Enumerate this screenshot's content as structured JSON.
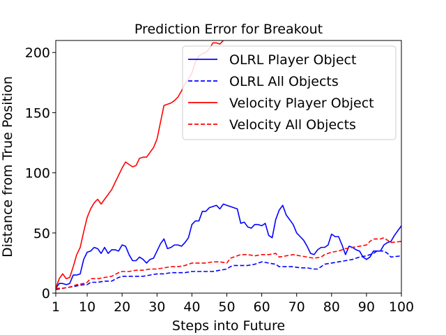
{
  "chart_data": {
    "type": "line",
    "title": "Prediction Error for Breakout",
    "xlabel": "Steps into Future",
    "ylabel": "Distance from True Position",
    "xlim": [
      1,
      100
    ],
    "ylim": [
      0,
      210
    ],
    "xticks": [
      1,
      10,
      20,
      30,
      40,
      50,
      60,
      70,
      80,
      90,
      100
    ],
    "yticks": [
      0,
      50,
      100,
      150,
      200
    ],
    "legend_position": "top-right",
    "series": [
      {
        "name": "OLRL Player Object",
        "color": "#0000ff",
        "style": "solid",
        "points": [
          [
            1,
            4
          ],
          [
            2,
            8
          ],
          [
            3,
            8
          ],
          [
            4,
            7
          ],
          [
            5,
            8
          ],
          [
            6,
            15
          ],
          [
            7,
            15
          ],
          [
            8,
            16
          ],
          [
            9,
            28
          ],
          [
            10,
            34
          ],
          [
            11,
            35
          ],
          [
            12,
            38
          ],
          [
            13,
            37
          ],
          [
            14,
            33
          ],
          [
            15,
            38
          ],
          [
            16,
            33
          ],
          [
            17,
            36
          ],
          [
            18,
            36
          ],
          [
            19,
            35
          ],
          [
            20,
            40
          ],
          [
            21,
            39
          ],
          [
            22,
            32
          ],
          [
            23,
            27
          ],
          [
            24,
            27
          ],
          [
            25,
            30
          ],
          [
            26,
            28
          ],
          [
            27,
            25
          ],
          [
            28,
            28
          ],
          [
            29,
            29
          ],
          [
            30,
            35
          ],
          [
            31,
            41
          ],
          [
            32,
            45
          ],
          [
            33,
            37
          ],
          [
            34,
            38
          ],
          [
            35,
            40
          ],
          [
            36,
            40
          ],
          [
            37,
            39
          ],
          [
            38,
            42
          ],
          [
            39,
            46
          ],
          [
            40,
            57
          ],
          [
            41,
            60
          ],
          [
            42,
            60
          ],
          [
            43,
            68
          ],
          [
            44,
            68
          ],
          [
            45,
            71
          ],
          [
            46,
            72
          ],
          [
            47,
            73
          ],
          [
            48,
            70
          ],
          [
            49,
            74
          ],
          [
            50,
            73
          ],
          [
            51,
            72
          ],
          [
            52,
            71
          ],
          [
            53,
            70
          ],
          [
            54,
            58
          ],
          [
            55,
            59
          ],
          [
            56,
            55
          ],
          [
            57,
            54
          ],
          [
            58,
            57
          ],
          [
            59,
            57
          ],
          [
            60,
            56
          ],
          [
            61,
            58
          ],
          [
            62,
            48
          ],
          [
            63,
            46
          ],
          [
            64,
            61
          ],
          [
            65,
            69
          ],
          [
            66,
            73
          ],
          [
            67,
            65
          ],
          [
            68,
            61
          ],
          [
            69,
            57
          ],
          [
            70,
            50
          ],
          [
            71,
            47
          ],
          [
            72,
            44
          ],
          [
            73,
            39
          ],
          [
            74,
            33
          ],
          [
            75,
            32
          ],
          [
            76,
            36
          ],
          [
            77,
            38
          ],
          [
            78,
            38
          ],
          [
            79,
            40
          ],
          [
            80,
            49
          ],
          [
            81,
            47
          ],
          [
            82,
            47
          ],
          [
            83,
            40
          ],
          [
            84,
            32
          ],
          [
            85,
            39
          ],
          [
            86,
            38
          ],
          [
            87,
            36
          ],
          [
            88,
            35
          ],
          [
            89,
            30
          ],
          [
            90,
            28
          ],
          [
            91,
            30
          ],
          [
            92,
            35
          ],
          [
            93,
            35
          ],
          [
            94,
            35
          ],
          [
            95,
            40
          ],
          [
            96,
            42
          ],
          [
            97,
            43
          ],
          [
            98,
            48
          ],
          [
            99,
            52
          ],
          [
            100,
            56
          ]
        ]
      },
      {
        "name": "OLRL All Objects",
        "color": "#0000ff",
        "style": "dashed",
        "points": [
          [
            1,
            3
          ],
          [
            3,
            4
          ],
          [
            5,
            5
          ],
          [
            7,
            6
          ],
          [
            9,
            7
          ],
          [
            10,
            7
          ],
          [
            11,
            9
          ],
          [
            13,
            9
          ],
          [
            15,
            10
          ],
          [
            17,
            10
          ],
          [
            19,
            13
          ],
          [
            20,
            14
          ],
          [
            22,
            14
          ],
          [
            24,
            14
          ],
          [
            26,
            14
          ],
          [
            28,
            15
          ],
          [
            30,
            16
          ],
          [
            32,
            16
          ],
          [
            34,
            17
          ],
          [
            36,
            17
          ],
          [
            38,
            17
          ],
          [
            40,
            18
          ],
          [
            42,
            18
          ],
          [
            44,
            18
          ],
          [
            46,
            18
          ],
          [
            48,
            19
          ],
          [
            50,
            20
          ],
          [
            51,
            22
          ],
          [
            52,
            23
          ],
          [
            54,
            23
          ],
          [
            56,
            23
          ],
          [
            58,
            24
          ],
          [
            60,
            26
          ],
          [
            62,
            25
          ],
          [
            64,
            24
          ],
          [
            65,
            22
          ],
          [
            67,
            22
          ],
          [
            69,
            22
          ],
          [
            71,
            21
          ],
          [
            73,
            21
          ],
          [
            75,
            20
          ],
          [
            76,
            20
          ],
          [
            77,
            22
          ],
          [
            78,
            24
          ],
          [
            80,
            25
          ],
          [
            82,
            26
          ],
          [
            84,
            27
          ],
          [
            86,
            28
          ],
          [
            88,
            30
          ],
          [
            90,
            31
          ],
          [
            92,
            33
          ],
          [
            93,
            35
          ],
          [
            95,
            35
          ],
          [
            96,
            33
          ],
          [
            97,
            30
          ],
          [
            100,
            31
          ]
        ]
      },
      {
        "name": "Velocity Player Object",
        "color": "#ff0000",
        "style": "solid",
        "points": [
          [
            1,
            4
          ],
          [
            2,
            12
          ],
          [
            3,
            16
          ],
          [
            4,
            12
          ],
          [
            5,
            13
          ],
          [
            6,
            22
          ],
          [
            7,
            32
          ],
          [
            8,
            38
          ],
          [
            9,
            51
          ],
          [
            10,
            63
          ],
          [
            11,
            70
          ],
          [
            12,
            75
          ],
          [
            13,
            78
          ],
          [
            14,
            74
          ],
          [
            15,
            78
          ],
          [
            16,
            82
          ],
          [
            17,
            86
          ],
          [
            18,
            92
          ],
          [
            19,
            98
          ],
          [
            20,
            104
          ],
          [
            21,
            109
          ],
          [
            22,
            107
          ],
          [
            23,
            105
          ],
          [
            24,
            106
          ],
          [
            25,
            112
          ],
          [
            26,
            113
          ],
          [
            27,
            113
          ],
          [
            28,
            117
          ],
          [
            29,
            121
          ],
          [
            30,
            128
          ],
          [
            31,
            142
          ],
          [
            32,
            156
          ],
          [
            33,
            157
          ],
          [
            34,
            158
          ],
          [
            35,
            160
          ],
          [
            36,
            163
          ],
          [
            37,
            168
          ],
          [
            38,
            174
          ],
          [
            39,
            178
          ],
          [
            40,
            183
          ],
          [
            41,
            192
          ],
          [
            42,
            197
          ],
          [
            43,
            199
          ],
          [
            44,
            200
          ],
          [
            45,
            203
          ],
          [
            46,
            208
          ],
          [
            47,
            208
          ],
          [
            48,
            207
          ],
          [
            49,
            210
          ]
        ]
      },
      {
        "name": "Velocity All Objects",
        "color": "#ff0000",
        "style": "dashed",
        "points": [
          [
            1,
            4
          ],
          [
            3,
            4
          ],
          [
            5,
            5
          ],
          [
            7,
            7
          ],
          [
            9,
            8
          ],
          [
            10,
            9
          ],
          [
            11,
            12
          ],
          [
            13,
            12
          ],
          [
            15,
            13
          ],
          [
            17,
            14
          ],
          [
            19,
            17
          ],
          [
            20,
            18
          ],
          [
            22,
            18
          ],
          [
            24,
            19
          ],
          [
            26,
            19
          ],
          [
            28,
            20
          ],
          [
            30,
            20
          ],
          [
            32,
            21
          ],
          [
            34,
            22
          ],
          [
            36,
            22
          ],
          [
            38,
            23
          ],
          [
            40,
            25
          ],
          [
            42,
            25
          ],
          [
            44,
            25
          ],
          [
            46,
            26
          ],
          [
            48,
            26
          ],
          [
            50,
            25
          ],
          [
            51,
            29
          ],
          [
            52,
            30
          ],
          [
            54,
            32
          ],
          [
            56,
            32
          ],
          [
            58,
            31
          ],
          [
            60,
            32
          ],
          [
            62,
            32
          ],
          [
            64,
            33
          ],
          [
            65,
            30
          ],
          [
            67,
            31
          ],
          [
            69,
            32
          ],
          [
            71,
            31
          ],
          [
            73,
            30
          ],
          [
            75,
            29
          ],
          [
            77,
            30
          ],
          [
            78,
            32
          ],
          [
            80,
            34
          ],
          [
            82,
            35
          ],
          [
            84,
            37
          ],
          [
            86,
            38
          ],
          [
            88,
            39
          ],
          [
            90,
            40
          ],
          [
            91,
            43
          ],
          [
            92,
            45
          ],
          [
            94,
            45
          ],
          [
            95,
            46
          ],
          [
            96,
            44
          ],
          [
            97,
            42
          ],
          [
            100,
            43
          ]
        ]
      }
    ]
  }
}
